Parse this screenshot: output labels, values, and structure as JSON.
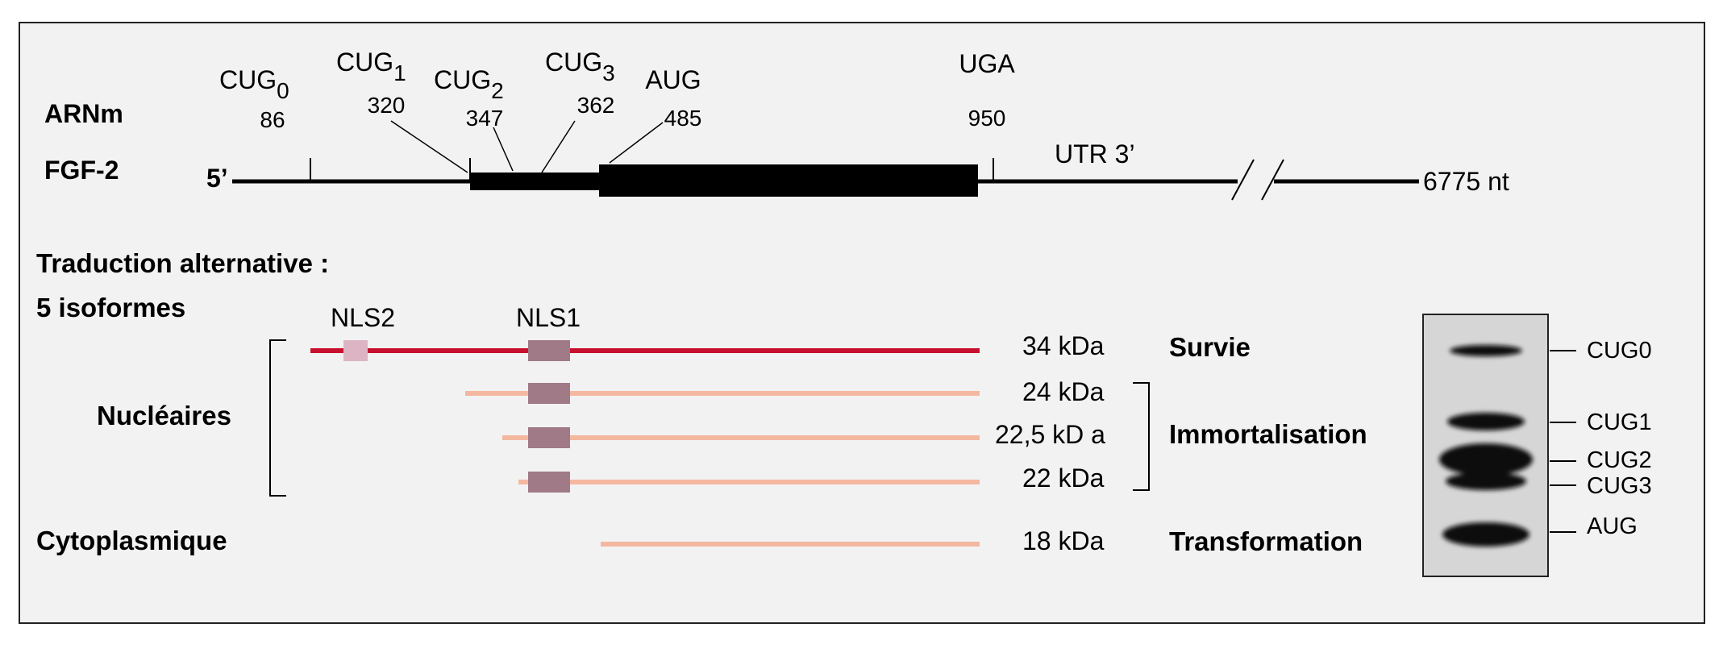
{
  "mrna": {
    "label_line1": "ARNm",
    "label_line2": "FGF-2",
    "five_prime": "5’",
    "utr_label": "UTR 3’",
    "length_label": "6775 nt",
    "sites": [
      {
        "base": "CUG",
        "sub": "0",
        "pos": "86"
      },
      {
        "base": "CUG",
        "sub": "1",
        "pos": "320"
      },
      {
        "base": "CUG",
        "sub": "2",
        "pos": "347"
      },
      {
        "base": "CUG",
        "sub": "3",
        "pos": "362"
      },
      {
        "base": "AUG",
        "sub": "",
        "pos": "485"
      },
      {
        "base": "UGA",
        "sub": "",
        "pos": "950"
      }
    ]
  },
  "translation": {
    "title_line1": "Traduction alternative :",
    "title_line2": "5 isoformes",
    "nls2": "NLS2",
    "nls1": "NLS1",
    "group_nuclear": "Nucléaires",
    "group_cyto": "Cytoplasmique"
  },
  "isoforms": [
    {
      "mass": "34 kDa",
      "role": "Survie"
    },
    {
      "mass": "24 kDa",
      "role": ""
    },
    {
      "mass": "22,5 kD a",
      "role": "Immortalisation"
    },
    {
      "mass": "22 kDa",
      "role": ""
    },
    {
      "mass": "18 kDa",
      "role": "Transformation"
    }
  ],
  "blot": {
    "labels": [
      "CUG0",
      "CUG1",
      "CUG2",
      "CUG3",
      "AUG"
    ]
  },
  "colors": {
    "isoform_34": "#c8102e",
    "isoform_other": "#f4b8a0",
    "nls1": "#a07a86",
    "nls2": "#dcb4c4",
    "panel_bg": "#f2f2f2"
  }
}
